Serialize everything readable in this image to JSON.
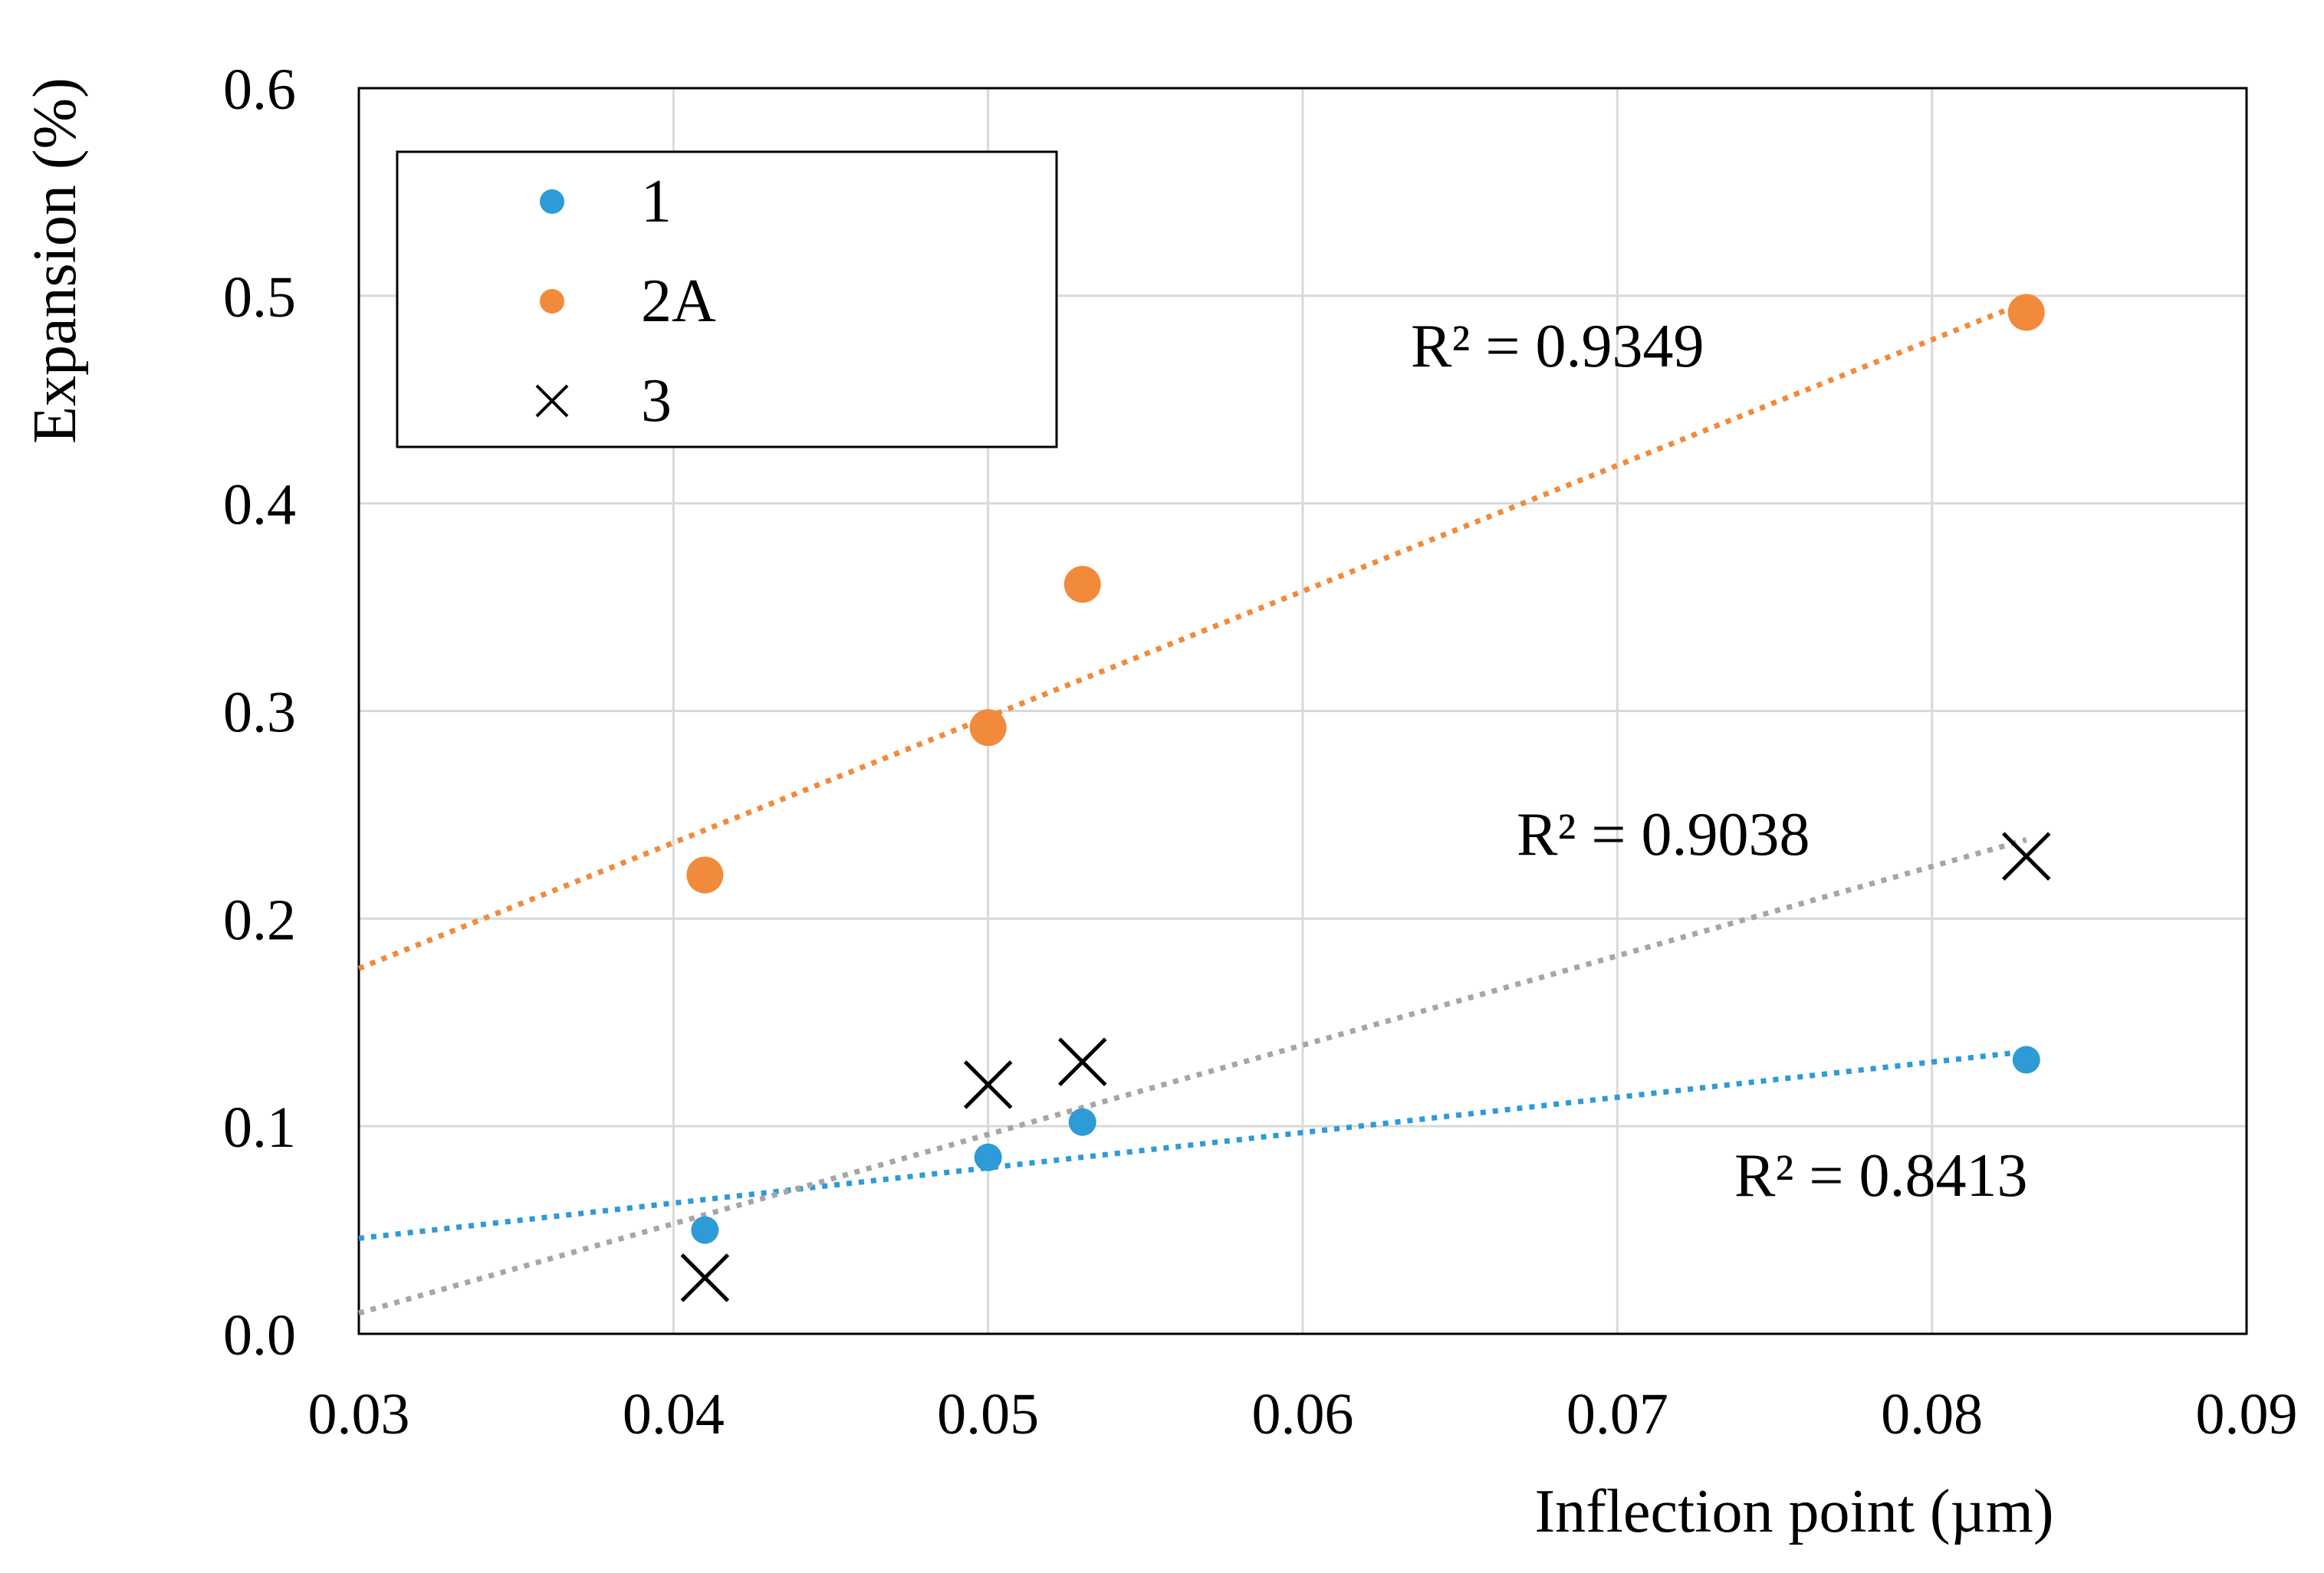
{
  "chart_data": {
    "type": "scatter",
    "title": "",
    "xlabel": "Inflection point (µm)",
    "ylabel": "Expansion (%)",
    "xlim": [
      0.03,
      0.09
    ],
    "ylim": [
      0.0,
      0.6
    ],
    "x_ticks": [
      0.03,
      0.04,
      0.05,
      0.06,
      0.07,
      0.08,
      0.09
    ],
    "x_tick_labels": [
      "0.03",
      "0.04",
      "0.05",
      "0.06",
      "0.07",
      "0.08",
      "0.09"
    ],
    "y_ticks": [
      0.0,
      0.1,
      0.2,
      0.3,
      0.4,
      0.5,
      0.6
    ],
    "y_tick_labels": [
      "0.0",
      "0.1",
      "0.2",
      "0.3",
      "0.4",
      "0.5",
      "0.6"
    ],
    "grid": true,
    "legend_position": "top-left",
    "series": [
      {
        "name": "1",
        "marker": "circle",
        "color": "#2e9bd6",
        "x": [
          0.041,
          0.05,
          0.053,
          0.083
        ],
        "y": [
          0.05,
          0.085,
          0.102,
          0.132
        ],
        "trendline": {
          "x": [
            0.03,
            0.083
          ],
          "y": [
            0.046,
            0.136
          ]
        },
        "r2_label": "R² = 0.8413"
      },
      {
        "name": "2A",
        "marker": "circle",
        "color": "#f28a3b",
        "x": [
          0.041,
          0.05,
          0.053,
          0.083
        ],
        "y": [
          0.221,
          0.292,
          0.361,
          0.492
        ],
        "trendline": {
          "x": [
            0.03,
            0.083
          ],
          "y": [
            0.176,
            0.497
          ]
        },
        "r2_label": "R² = 0.9349"
      },
      {
        "name": "3",
        "marker": "x",
        "color": "#000000",
        "trend_color": "#a6a6a6",
        "x": [
          0.041,
          0.05,
          0.053,
          0.083
        ],
        "y": [
          0.027,
          0.12,
          0.131,
          0.23
        ],
        "trendline": {
          "x": [
            0.03,
            0.083
          ],
          "y": [
            0.01,
            0.238
          ]
        },
        "r2_label": "R² = 0.9038"
      }
    ]
  }
}
